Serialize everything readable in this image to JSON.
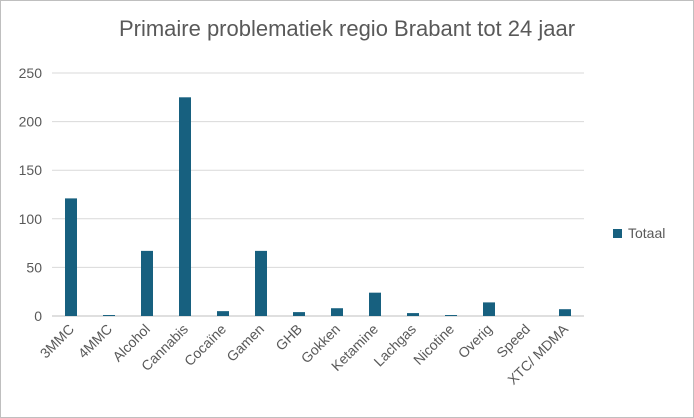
{
  "chart_data": {
    "type": "bar",
    "title": "Primaire problematiek regio Brabant tot 24 jaar",
    "xlabel": "",
    "ylabel": "",
    "ylim": [
      0,
      250
    ],
    "yticks": [
      0,
      50,
      100,
      150,
      200,
      250
    ],
    "grid": true,
    "legend_position": "right",
    "categories": [
      "3MMC",
      "4MMC",
      "Alcohol",
      "Cannabis",
      "Cocaïne",
      "Gamen",
      "GHB",
      "Gokken",
      "Ketamine",
      "Lachgas",
      "Nicotine",
      "Overig",
      "Speed",
      "XTC/ MDMA"
    ],
    "series": [
      {
        "name": "Totaal",
        "color": "#17607f",
        "values": [
          121,
          1,
          67,
          225,
          5,
          67,
          4,
          8,
          24,
          3,
          1,
          14,
          0,
          7
        ]
      }
    ]
  }
}
